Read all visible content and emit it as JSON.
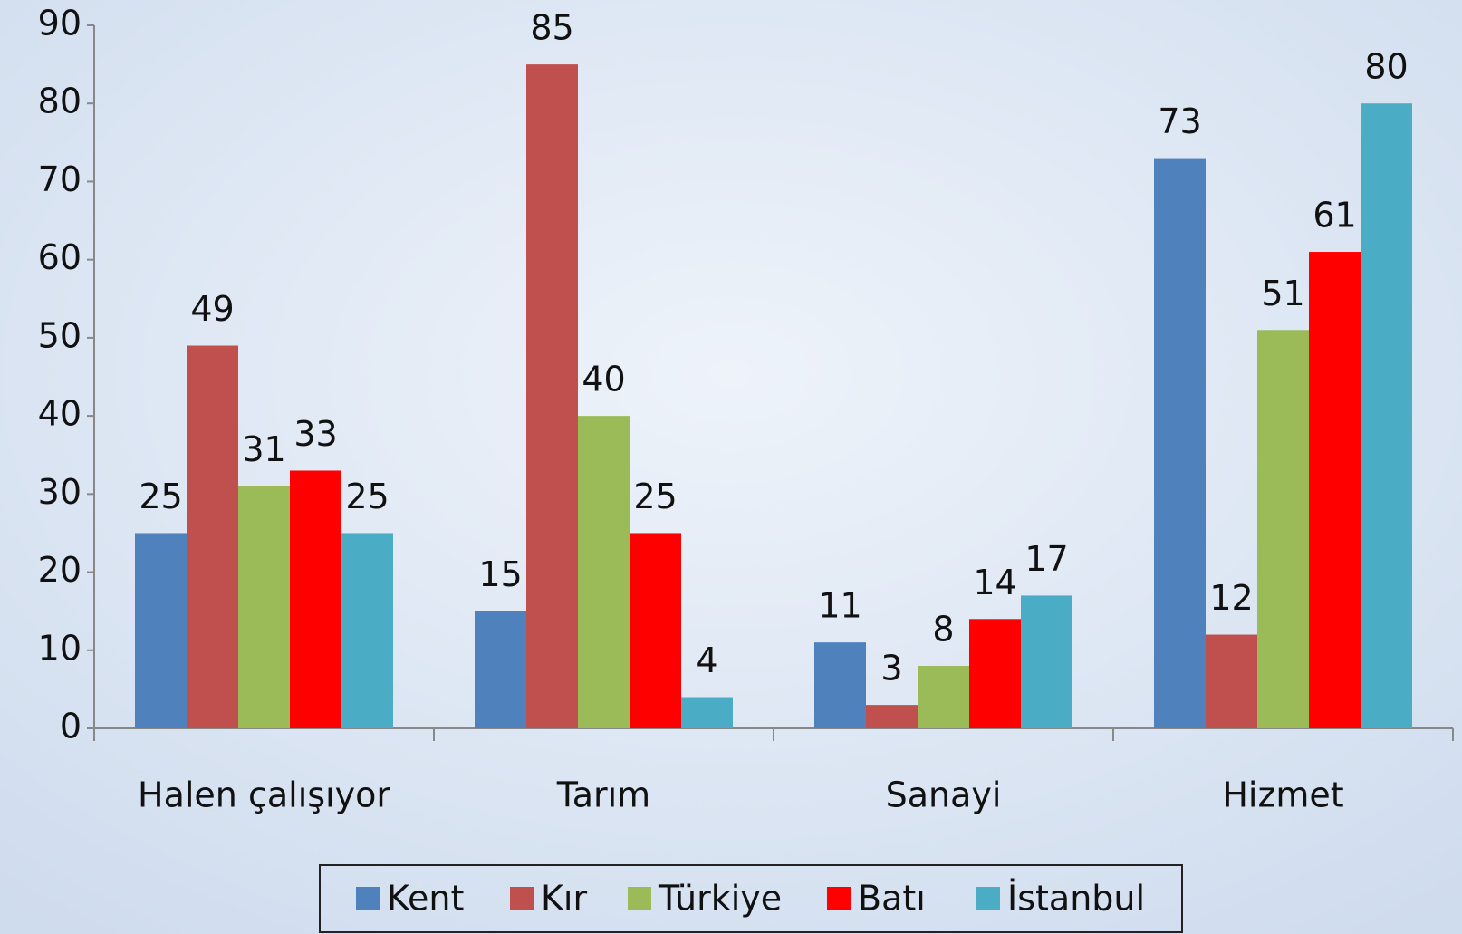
{
  "chart_data": {
    "type": "bar",
    "categories": [
      "Halen çalışıyor",
      "Tarım",
      "Sanayi",
      "Hizmet"
    ],
    "series": [
      {
        "name": "Kent",
        "color": "#4f81bd",
        "values": [
          25,
          15,
          11,
          73
        ]
      },
      {
        "name": "Kır",
        "color": "#c0504d",
        "values": [
          49,
          85,
          3,
          12
        ]
      },
      {
        "name": "Türkiye",
        "color": "#9bbb59",
        "values": [
          31,
          40,
          8,
          51
        ]
      },
      {
        "name": "Batı",
        "color": "#ff0000",
        "values": [
          33,
          25,
          14,
          61
        ]
      },
      {
        "name": "İstanbul",
        "color": "#4bacc6",
        "values": [
          25,
          4,
          17,
          80
        ]
      }
    ],
    "ylim": [
      0,
      90
    ],
    "yticks": [
      0,
      10,
      20,
      30,
      40,
      50,
      60,
      70,
      80,
      90
    ],
    "legend": "bottom"
  }
}
